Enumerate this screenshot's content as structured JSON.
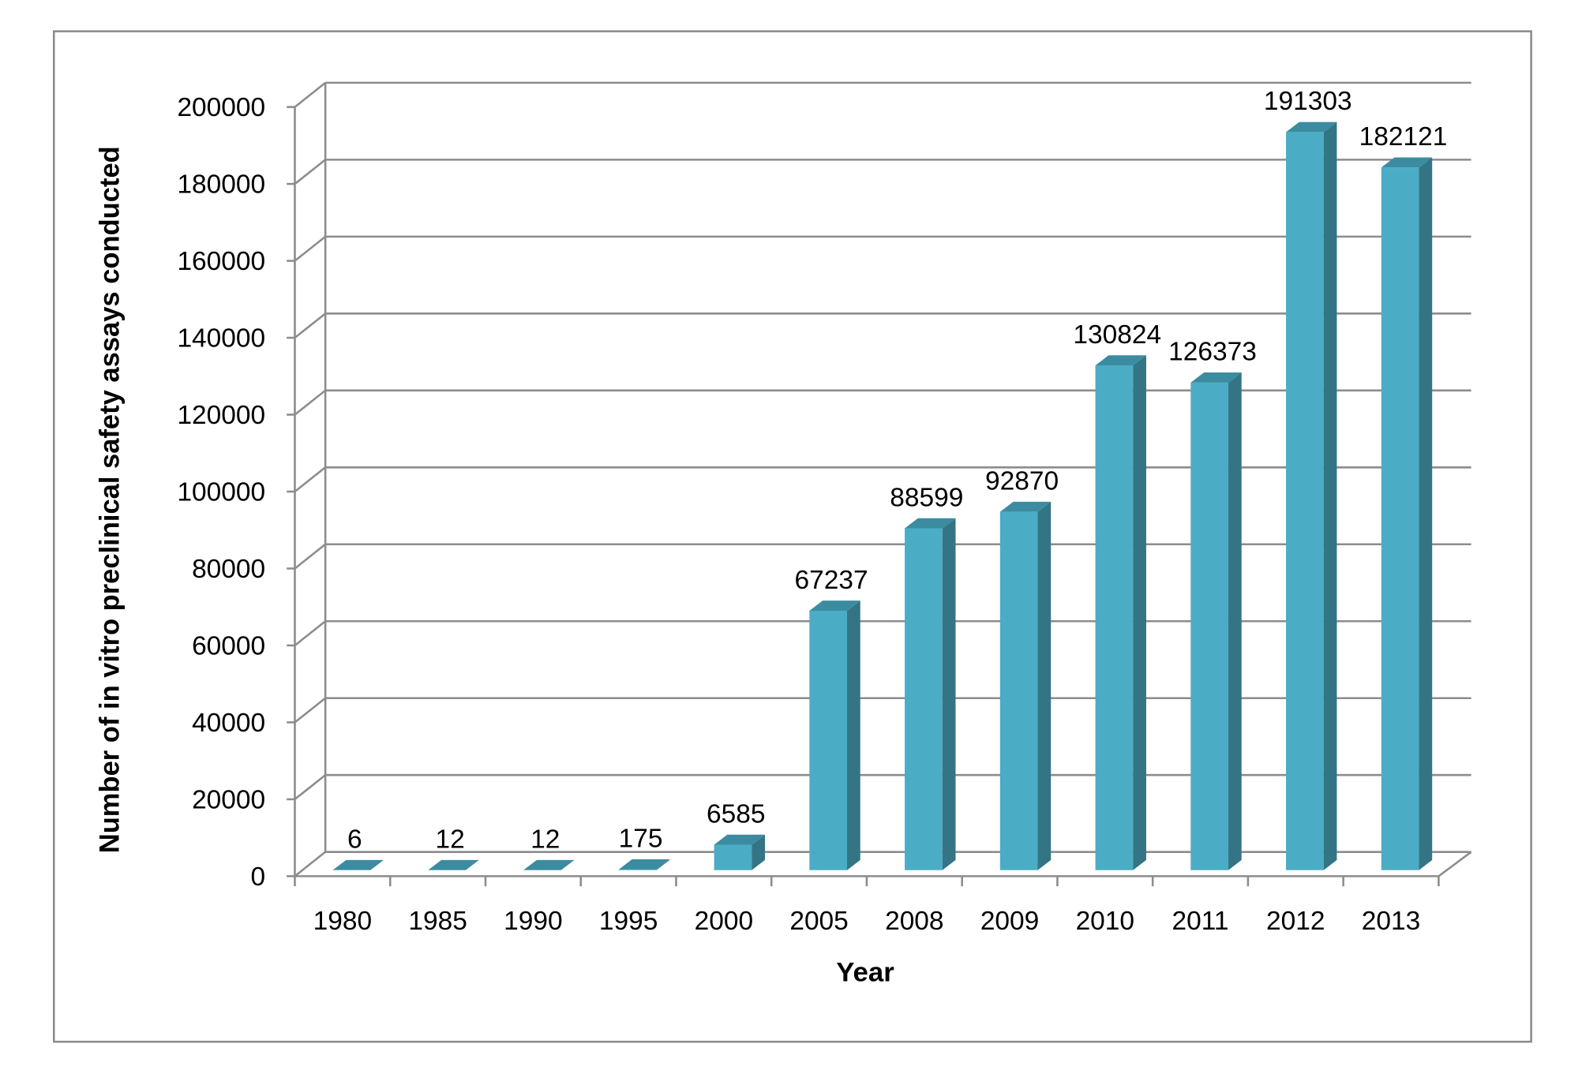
{
  "chart_data": {
    "type": "bar",
    "style": "3d-column",
    "title": "",
    "xlabel": "Year",
    "ylabel": "Number of in vitro preclinical safety assays conducted",
    "categories": [
      "1980",
      "1985",
      "1990",
      "1995",
      "2000",
      "2005",
      "2008",
      "2009",
      "2010",
      "2011",
      "2012",
      "2013"
    ],
    "values": [
      6,
      12,
      12,
      175,
      6585,
      67237,
      88599,
      92870,
      130824,
      126373,
      191303,
      182121
    ],
    "data_labels": [
      "6",
      "12",
      "12",
      "175",
      "6585",
      "67237",
      "88599",
      "92870",
      "130824",
      "126373",
      "191303",
      "182121"
    ],
    "ylim": [
      0,
      200000
    ],
    "yticks": [
      "0",
      "20000",
      "40000",
      "60000",
      "80000",
      "100000",
      "120000",
      "140000",
      "160000",
      "180000",
      "200000"
    ],
    "grid": true,
    "legend": "none",
    "colors": {
      "bar_front": "#4bacc6",
      "bar_side": "#347585",
      "bar_top": "#3b8ca1",
      "grid": "#8c8c8c",
      "frame": "#8c8c8c"
    }
  }
}
